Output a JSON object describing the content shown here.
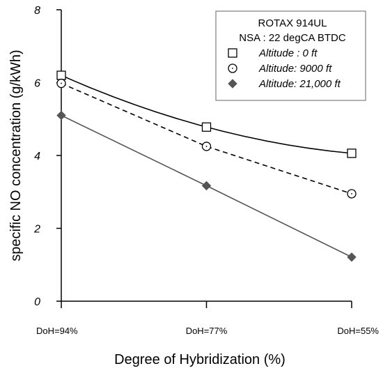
{
  "chart_data": {
    "type": "line",
    "categories": [
      "DoH=94%",
      "DoH=77%",
      "DoH=55%"
    ],
    "xlabel": "Degree of Hybridization (%)",
    "ylabel": "specific NO concentration (g/kWh)",
    "ylim": [
      0,
      8
    ],
    "yticks": [
      0,
      2,
      4,
      6,
      8
    ],
    "grid": false,
    "legend": {
      "placement": "top-right",
      "title_lines": [
        "ROTAX 914UL",
        "NSA : 22 degCA BTDC"
      ]
    },
    "series": [
      {
        "name": "Altitude : 0 ft",
        "values": [
          6.2,
          4.78,
          4.06
        ],
        "marker": "open-square",
        "line": "solid-curved",
        "color": "#000000"
      },
      {
        "name": "Altitude: 9000 ft",
        "values": [
          5.98,
          4.25,
          2.95
        ],
        "marker": "open-circle",
        "line": "dashed",
        "color": "#000000"
      },
      {
        "name": "Altitude: 21,000 ft",
        "values": [
          5.1,
          3.17,
          1.21
        ],
        "marker": "filled-diamond",
        "line": "solid",
        "color": "#555555"
      }
    ]
  }
}
